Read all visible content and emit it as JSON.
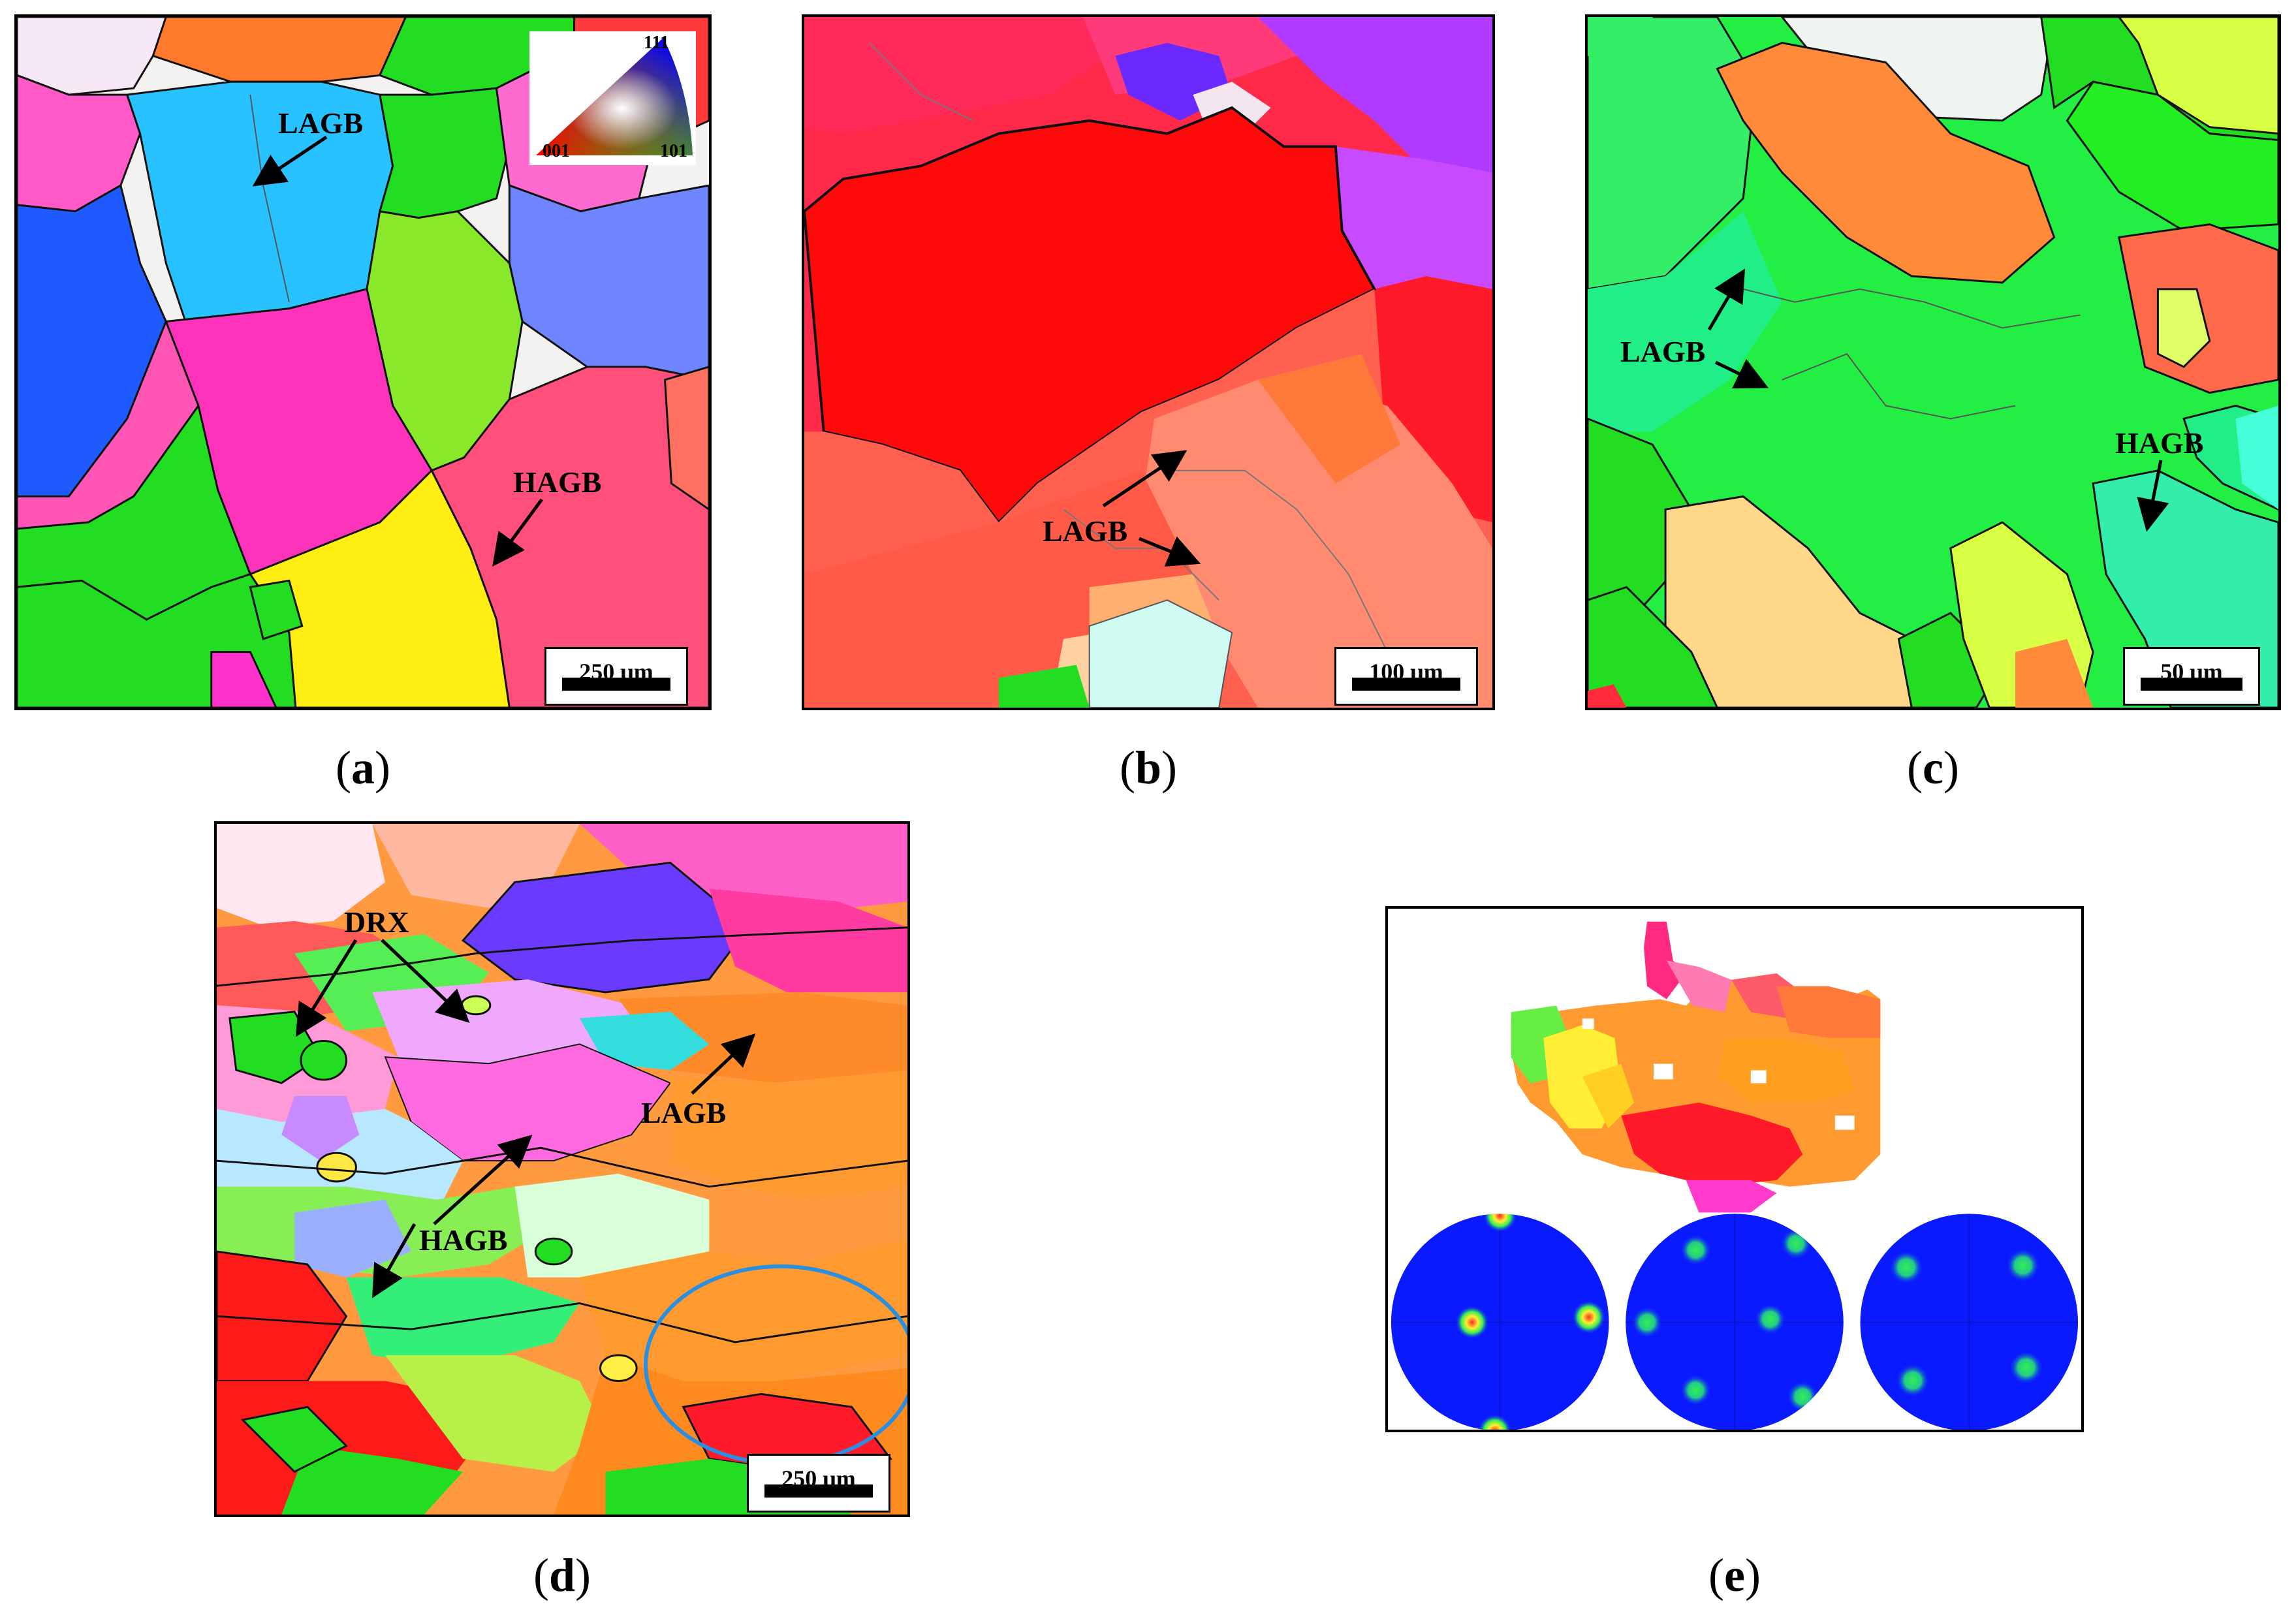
{
  "panels": {
    "a": {
      "caption_letter": "a",
      "annotations": {
        "lagb": "LAGB",
        "hagb": "HAGB"
      },
      "scale_bar": "250 μm",
      "ipf_key": {
        "top": "111",
        "left": "001",
        "right": "101"
      }
    },
    "b": {
      "caption_letter": "b",
      "annotations": {
        "lagb": "LAGB"
      },
      "scale_bar": "100 μm"
    },
    "c": {
      "caption_letter": "c",
      "annotations": {
        "lagb": "LAGB",
        "hagb": "HAGB"
      },
      "scale_bar": "50 μm"
    },
    "d": {
      "caption_letter": "d",
      "annotations": {
        "drx": "DRX",
        "lagb": "LAGB",
        "hagb": "HAGB"
      },
      "scale_bar": "250 μm"
    },
    "e": {
      "caption_letter": "e"
    }
  },
  "colors": {
    "red_001": "#ff1a1a",
    "green_101": "#22dd22",
    "blue_111": "#3344ff",
    "circle_highlight": "#2a8fe0",
    "pole_figure_bg": "#0a1aff"
  }
}
